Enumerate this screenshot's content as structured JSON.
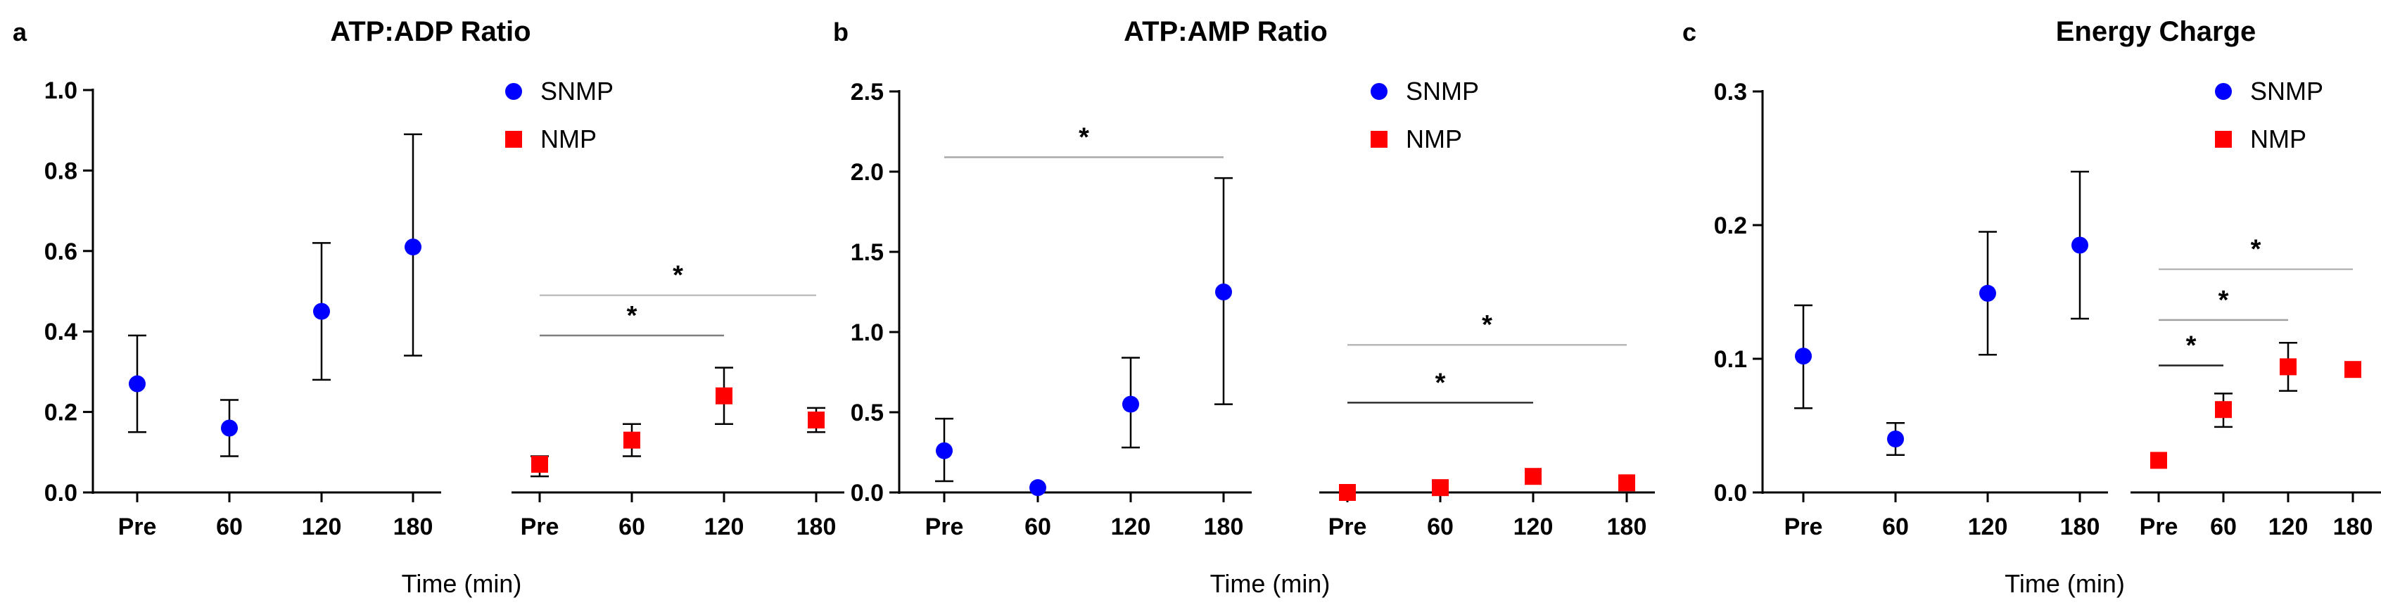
{
  "figure": {
    "xlabel": "Time (min)",
    "legend": [
      {
        "name": "SNMP",
        "marker": "circle",
        "color": "#0000ff"
      },
      {
        "name": "NMP",
        "marker": "square",
        "color": "#ff0000"
      }
    ],
    "colors": {
      "snmp": "#0000ff",
      "nmp": "#ff0000",
      "axis": "#000000",
      "sigline": "#b3b3b3"
    }
  },
  "chart_data": [
    {
      "panel": "a",
      "type": "scatter",
      "title": "ATP:ADP Ratio",
      "xlabel": "Time (min)",
      "ylabel": "",
      "ylim": [
        0,
        1.0
      ],
      "yticks": [
        "0.0",
        "0.2",
        "0.4",
        "0.6",
        "0.8",
        "1.0"
      ],
      "ytick_values": [
        0,
        0.2,
        0.4,
        0.6,
        0.8,
        1.0
      ],
      "categories": [
        "Pre",
        "60",
        "120",
        "180",
        "Pre",
        "60",
        "120",
        "180"
      ],
      "series": [
        {
          "name": "SNMP",
          "positions": [
            0,
            1,
            2,
            3
          ],
          "values": [
            0.27,
            0.16,
            0.45,
            0.61
          ],
          "err_low": [
            0.15,
            0.09,
            0.28,
            0.34
          ],
          "err_high": [
            0.39,
            0.23,
            0.62,
            0.89
          ]
        },
        {
          "name": "NMP",
          "positions": [
            4,
            5,
            6,
            7
          ],
          "values": [
            0.07,
            0.13,
            0.24,
            0.18
          ],
          "err_low": [
            0.04,
            0.09,
            0.17,
            0.15
          ],
          "err_high": [
            0.09,
            0.17,
            0.31,
            0.21
          ]
        }
      ],
      "significance": [
        {
          "from": 4,
          "to": 6,
          "y": 0.39,
          "label": "*",
          "line_color": "#808080"
        },
        {
          "from": 4,
          "to": 7,
          "y": 0.49,
          "label": "*",
          "line_color": "#c0c0c0"
        }
      ]
    },
    {
      "panel": "b",
      "type": "scatter",
      "title": "ATP:AMP Ratio",
      "xlabel": "Time (min)",
      "ylabel": "",
      "ylim": [
        0,
        2.5
      ],
      "yticks": [
        "0.0",
        "0.5",
        "1.0",
        "1.5",
        "2.0",
        "2.5"
      ],
      "ytick_values": [
        0,
        0.5,
        1.0,
        1.5,
        2.0,
        2.5
      ],
      "categories": [
        "Pre",
        "60",
        "120",
        "180",
        "Pre",
        "60",
        "120",
        "180"
      ],
      "series": [
        {
          "name": "SNMP",
          "positions": [
            0,
            1,
            2,
            3
          ],
          "values": [
            0.26,
            0.03,
            0.55,
            1.25
          ],
          "err_low": [
            0.07,
            null,
            0.28,
            0.55
          ],
          "err_high": [
            0.46,
            null,
            0.84,
            1.96
          ]
        },
        {
          "name": "NMP",
          "positions": [
            4,
            5,
            6,
            7
          ],
          "values": [
            0.0,
            0.03,
            0.1,
            0.06
          ],
          "err_low": [
            null,
            null,
            null,
            null
          ],
          "err_high": [
            null,
            null,
            null,
            null
          ]
        }
      ],
      "significance": [
        {
          "from": 0,
          "to": 3,
          "y": 2.09,
          "label": "*",
          "line_color": "#a8a8a8"
        },
        {
          "from": 4,
          "to": 6,
          "y": 0.56,
          "label": "*",
          "line_color": "#303030"
        },
        {
          "from": 4,
          "to": 7,
          "y": 0.92,
          "label": "*",
          "line_color": "#b8b8b8"
        }
      ]
    },
    {
      "panel": "c",
      "type": "scatter",
      "title": "Energy Charge",
      "xlabel": "Time (min)",
      "ylabel": "",
      "ylim": [
        0,
        0.3
      ],
      "yticks": [
        "0.0",
        "0.1",
        "0.2",
        "0.3"
      ],
      "ytick_values": [
        0,
        0.1,
        0.2,
        0.3
      ],
      "categories": [
        "Pre",
        "60",
        "120",
        "180",
        "Pre",
        "60",
        "120",
        "180"
      ],
      "series": [
        {
          "name": "SNMP",
          "positions": [
            0,
            1,
            2,
            3
          ],
          "values": [
            0.102,
            0.04,
            0.149,
            0.185
          ],
          "err_low": [
            0.063,
            0.028,
            0.103,
            0.13
          ],
          "err_high": [
            0.14,
            0.052,
            0.195,
            0.24
          ]
        },
        {
          "name": "NMP",
          "positions": [
            4,
            5,
            6,
            7
          ],
          "values": [
            0.024,
            0.062,
            0.094,
            0.092
          ],
          "err_low": [
            null,
            0.049,
            0.076,
            null
          ],
          "err_high": [
            null,
            0.074,
            0.112,
            null
          ]
        }
      ],
      "significance": [
        {
          "from": 4,
          "to": 5,
          "y": 0.095,
          "label": "*",
          "line_color": "#202020"
        },
        {
          "from": 4,
          "to": 6,
          "y": 0.129,
          "label": "*",
          "line_color": "#a0a0a0"
        },
        {
          "from": 4,
          "to": 7,
          "y": 0.167,
          "label": "*",
          "line_color": "#b8b8b8"
        }
      ]
    }
  ]
}
